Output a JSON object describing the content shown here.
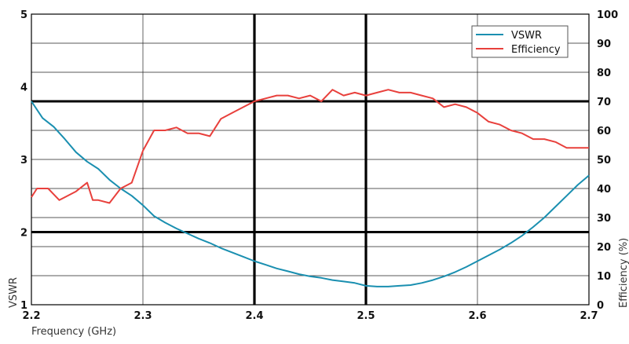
{
  "chart_data": {
    "type": "line",
    "title": "",
    "xlabel": "Frequency (GHz)",
    "ylabel": "VSWR",
    "y2label": "Efficiency (%)",
    "xlim": [
      2.2,
      2.7
    ],
    "ylim": [
      1,
      5
    ],
    "y2lim": [
      0,
      100
    ],
    "grid": true,
    "legend_position": "top-right",
    "x_ticks": [
      "2.2",
      "2.3",
      "2.4",
      "2.5",
      "2.6",
      "2.7"
    ],
    "y_ticks": [
      "1",
      "2",
      "3",
      "4",
      "5"
    ],
    "y2_ticks": [
      "0",
      "10",
      "20",
      "30",
      "40",
      "50",
      "60",
      "70",
      "80",
      "90",
      "100"
    ],
    "series": [
      {
        "name": "VSWR",
        "axis": "left",
        "color": "#1a8fb0",
        "x": [
          2.2,
          2.21,
          2.22,
          2.23,
          2.24,
          2.25,
          2.26,
          2.27,
          2.28,
          2.29,
          2.3,
          2.31,
          2.32,
          2.33,
          2.34,
          2.35,
          2.36,
          2.37,
          2.38,
          2.39,
          2.4,
          2.41,
          2.42,
          2.43,
          2.44,
          2.45,
          2.46,
          2.47,
          2.48,
          2.49,
          2.5,
          2.51,
          2.52,
          2.53,
          2.54,
          2.55,
          2.56,
          2.57,
          2.58,
          2.59,
          2.6,
          2.61,
          2.62,
          2.63,
          2.64,
          2.65,
          2.66,
          2.67,
          2.68,
          2.69,
          2.7
        ],
        "y": [
          3.8,
          3.57,
          3.45,
          3.28,
          3.1,
          2.97,
          2.87,
          2.72,
          2.6,
          2.5,
          2.37,
          2.22,
          2.13,
          2.05,
          1.98,
          1.91,
          1.85,
          1.78,
          1.72,
          1.66,
          1.6,
          1.55,
          1.5,
          1.46,
          1.42,
          1.39,
          1.37,
          1.34,
          1.32,
          1.3,
          1.26,
          1.25,
          1.25,
          1.26,
          1.27,
          1.3,
          1.34,
          1.39,
          1.45,
          1.52,
          1.6,
          1.68,
          1.76,
          1.85,
          1.95,
          2.07,
          2.2,
          2.35,
          2.5,
          2.65,
          2.78
        ]
      },
      {
        "name": "Efficiency",
        "axis": "right",
        "color": "#e8403c",
        "x": [
          2.2,
          2.205,
          2.21,
          2.215,
          2.22,
          2.225,
          2.23,
          2.24,
          2.25,
          2.255,
          2.26,
          2.27,
          2.28,
          2.29,
          2.3,
          2.31,
          2.32,
          2.33,
          2.34,
          2.35,
          2.36,
          2.37,
          2.38,
          2.39,
          2.4,
          2.41,
          2.42,
          2.43,
          2.44,
          2.45,
          2.46,
          2.47,
          2.48,
          2.49,
          2.5,
          2.51,
          2.52,
          2.53,
          2.54,
          2.55,
          2.56,
          2.57,
          2.58,
          2.59,
          2.6,
          2.61,
          2.62,
          2.63,
          2.64,
          2.65,
          2.66,
          2.67,
          2.68,
          2.69,
          2.7
        ],
        "y": [
          37,
          40,
          40,
          40,
          38,
          36,
          37,
          39,
          42,
          36,
          36,
          35,
          40,
          42,
          53,
          60,
          60,
          61,
          59,
          59,
          58,
          64,
          66,
          68,
          70,
          71,
          72,
          72,
          71,
          72,
          70,
          74,
          72,
          73,
          72,
          73,
          74,
          73,
          73,
          72,
          71,
          68,
          69,
          68,
          66,
          63,
          62,
          60,
          59,
          57,
          57,
          56,
          54,
          54,
          54
        ]
      }
    ]
  }
}
